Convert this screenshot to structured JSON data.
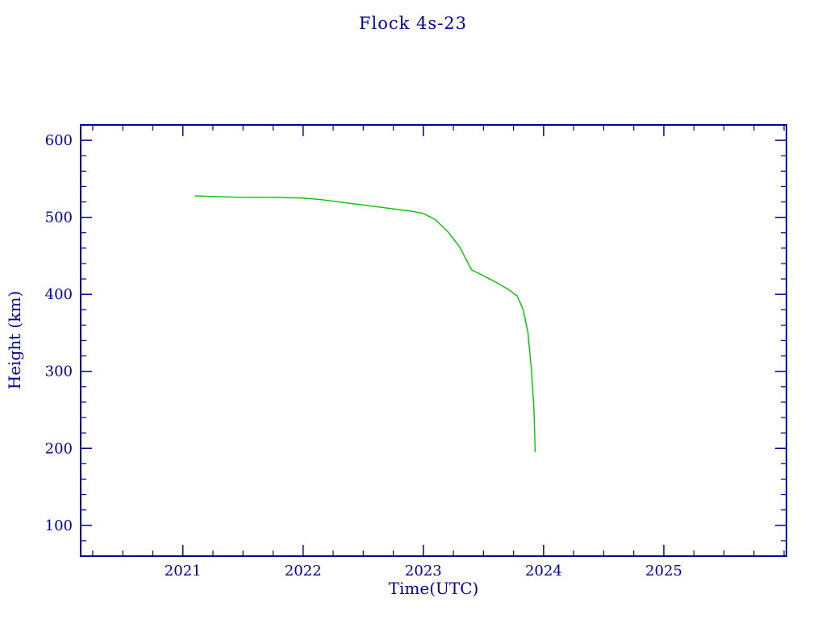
{
  "chart_data": {
    "type": "line",
    "title": "Flock 4s-23",
    "xlabel": "Time(UTC)",
    "ylabel": "Height (km)",
    "xlim": [
      2020.15,
      2026.02
    ],
    "ylim": [
      60,
      620
    ],
    "xticks": [
      2021,
      2022,
      2023,
      2024,
      2025
    ],
    "yticks": [
      100,
      200,
      300,
      400,
      500,
      600
    ],
    "x_minor_step": 0.25,
    "y_minor_step": 20,
    "grid": false,
    "legend": "none",
    "colors": {
      "axis": "#000099",
      "text": "#000099",
      "line": "#00c400",
      "background": "#ffffff"
    },
    "series": [
      {
        "name": "Flock 4s-23 height",
        "color": "#00c400",
        "x": [
          2021.1,
          2021.25,
          2021.5,
          2021.75,
          2022.0,
          2022.15,
          2022.3,
          2022.5,
          2022.7,
          2022.9,
          2023.0,
          2023.1,
          2023.2,
          2023.3,
          2023.4,
          2023.5,
          2023.6,
          2023.7,
          2023.78,
          2023.83,
          2023.87,
          2023.9,
          2023.92,
          2023.93
        ],
        "y": [
          528,
          527,
          526,
          526,
          525,
          523,
          520,
          516,
          512,
          508,
          505,
          497,
          482,
          462,
          432,
          424,
          416,
          407,
          398,
          380,
          350,
          300,
          250,
          195
        ]
      }
    ]
  }
}
